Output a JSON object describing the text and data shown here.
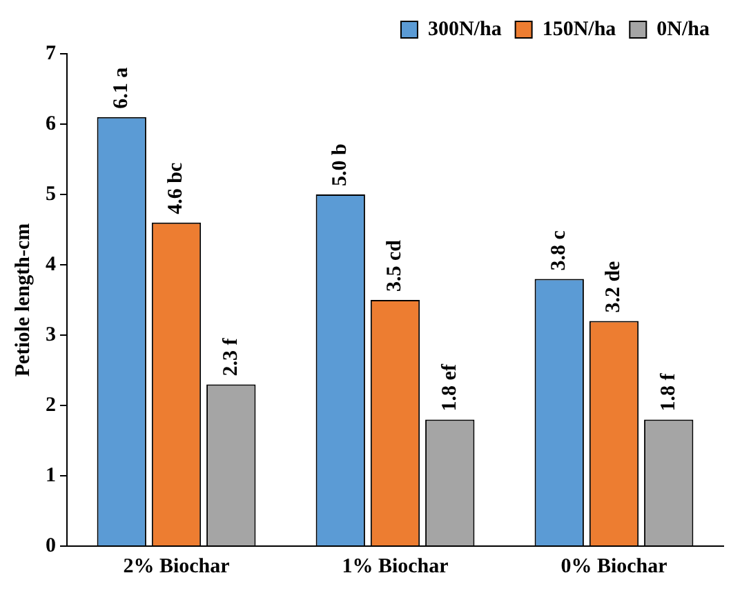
{
  "chart_data": {
    "type": "bar",
    "ylabel": "Petiole length-cm",
    "categories": [
      "2% Biochar",
      "1% Biochar",
      "0% Biochar"
    ],
    "series": [
      {
        "name": "300N/ha",
        "color": "#5b9bd5",
        "values": [
          6.1,
          5.0,
          3.8
        ],
        "value_labels": [
          "6.1 a",
          "5.0 b",
          "3.8 c"
        ]
      },
      {
        "name": "150N/ha",
        "color": "#ed7d31",
        "values": [
          4.6,
          3.5,
          3.2
        ],
        "value_labels": [
          "4.6 bc",
          "3.5 cd",
          "3.2 de"
        ]
      },
      {
        "name": "0N/ha",
        "color": "#a5a5a5",
        "values": [
          2.3,
          1.8,
          1.8
        ],
        "value_labels": [
          "2.3 f",
          "1.8 ef",
          "1.8 f"
        ]
      }
    ],
    "ylim": [
      0,
      7
    ],
    "yticks": [
      0,
      1,
      2,
      3,
      4,
      5,
      6,
      7
    ],
    "grid": false,
    "legend": "top right"
  }
}
